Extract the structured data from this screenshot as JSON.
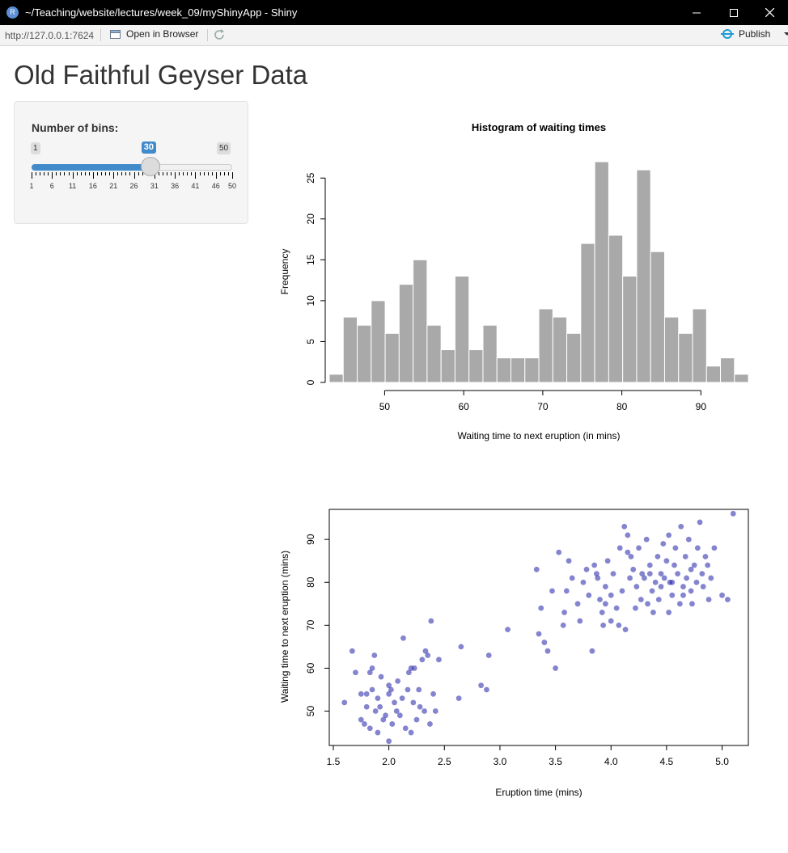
{
  "window": {
    "title": "~/Teaching/website/lectures/week_09/myShinyApp - Shiny",
    "icon": "r-app-icon"
  },
  "toolbar": {
    "url": "http://127.0.0.1:7624",
    "open_in_browser": "Open in Browser",
    "publish": "Publish"
  },
  "app": {
    "title": "Old Faithful Geyser Data",
    "slider": {
      "label": "Number of bins:",
      "min": 1,
      "max": 50,
      "value": 30,
      "min_text": "1",
      "max_text": "50",
      "value_text": "30",
      "tick_labels": [
        "1",
        "6",
        "11",
        "16",
        "21",
        "26",
        "31",
        "36",
        "41",
        "46",
        "50"
      ]
    }
  },
  "chart_data": [
    {
      "type": "bar",
      "title": "Histogram of waiting times",
      "xlabel": "Waiting time to next eruption (in mins)",
      "ylabel": "Frequency",
      "bar_color": "#a9a9a9",
      "bin_start": 43,
      "bin_width": 1.767,
      "values": [
        1,
        8,
        7,
        10,
        6,
        12,
        15,
        7,
        4,
        13,
        4,
        7,
        3,
        3,
        3,
        9,
        8,
        6,
        17,
        27,
        18,
        13,
        26,
        16,
        8,
        6,
        9,
        2,
        3,
        1
      ],
      "xlim": [
        43,
        96
      ],
      "x_ticks": [
        50,
        60,
        70,
        80,
        90
      ],
      "ylim": [
        0,
        27
      ],
      "y_ticks": [
        0,
        5,
        10,
        15,
        20,
        25
      ]
    },
    {
      "type": "scatter",
      "title": "",
      "xlabel": "Eruption time (mins)",
      "ylabel": "Waiting time to next eruption (mins)",
      "point_color": "#2020a8",
      "xlim": [
        1.5,
        5.2
      ],
      "x_ticks": [
        1.5,
        2.0,
        2.5,
        3.0,
        3.5,
        4.0,
        4.5,
        5.0
      ],
      "x_tick_labels": [
        "1.5",
        "2.0",
        "2.5",
        "3.0",
        "3.5",
        "4.0",
        "4.5",
        "5.0"
      ],
      "ylim": [
        42,
        97
      ],
      "y_ticks": [
        50,
        60,
        70,
        80,
        90
      ],
      "points": [
        [
          1.6,
          52
        ],
        [
          1.67,
          64
        ],
        [
          1.7,
          59
        ],
        [
          1.75,
          54
        ],
        [
          1.75,
          48
        ],
        [
          1.78,
          47
        ],
        [
          1.8,
          51
        ],
        [
          1.8,
          54
        ],
        [
          1.83,
          59
        ],
        [
          1.83,
          46
        ],
        [
          1.85,
          60
        ],
        [
          1.85,
          55
        ],
        [
          1.87,
          63
        ],
        [
          1.88,
          50
        ],
        [
          1.9,
          53
        ],
        [
          1.9,
          45
        ],
        [
          1.92,
          51
        ],
        [
          1.93,
          58
        ],
        [
          1.95,
          48
        ],
        [
          1.97,
          49
        ],
        [
          2.0,
          56
        ],
        [
          2.0,
          54
        ],
        [
          2.0,
          43
        ],
        [
          2.02,
          55
        ],
        [
          2.03,
          47
        ],
        [
          2.05,
          52
        ],
        [
          2.07,
          50
        ],
        [
          2.08,
          57
        ],
        [
          2.1,
          49
        ],
        [
          2.12,
          53
        ],
        [
          2.13,
          67
        ],
        [
          2.15,
          46
        ],
        [
          2.17,
          55
        ],
        [
          2.18,
          59
        ],
        [
          2.2,
          60
        ],
        [
          2.2,
          45
        ],
        [
          2.22,
          52
        ],
        [
          2.23,
          60
        ],
        [
          2.25,
          48
        ],
        [
          2.27,
          55
        ],
        [
          2.28,
          51
        ],
        [
          2.3,
          62
        ],
        [
          2.32,
          50
        ],
        [
          2.33,
          64
        ],
        [
          2.35,
          63
        ],
        [
          2.37,
          47
        ],
        [
          2.38,
          71
        ],
        [
          2.4,
          54
        ],
        [
          2.42,
          50
        ],
        [
          2.45,
          62
        ],
        [
          2.63,
          53
        ],
        [
          2.65,
          65
        ],
        [
          2.83,
          56
        ],
        [
          2.88,
          55
        ],
        [
          2.9,
          63
        ],
        [
          3.07,
          69
        ],
        [
          3.33,
          83
        ],
        [
          3.35,
          68
        ],
        [
          3.37,
          74
        ],
        [
          3.4,
          66
        ],
        [
          3.43,
          64
        ],
        [
          3.47,
          78
        ],
        [
          3.5,
          60
        ],
        [
          3.53,
          87
        ],
        [
          3.57,
          70
        ],
        [
          3.58,
          73
        ],
        [
          3.6,
          78
        ],
        [
          3.62,
          85
        ],
        [
          3.65,
          81
        ],
        [
          3.7,
          75
        ],
        [
          3.72,
          71
        ],
        [
          3.75,
          80
        ],
        [
          3.78,
          83
        ],
        [
          3.8,
          77
        ],
        [
          3.83,
          64
        ],
        [
          3.85,
          84
        ],
        [
          3.87,
          82
        ],
        [
          3.9,
          76
        ],
        [
          3.92,
          73
        ],
        [
          3.93,
          70
        ],
        [
          3.95,
          79
        ],
        [
          3.97,
          85
        ],
        [
          4.0,
          77
        ],
        [
          4.0,
          71
        ],
        [
          4.02,
          82
        ],
        [
          4.05,
          74
        ],
        [
          4.07,
          70
        ],
        [
          4.08,
          88
        ],
        [
          4.1,
          78
        ],
        [
          4.12,
          93
        ],
        [
          4.13,
          69
        ],
        [
          4.15,
          91
        ],
        [
          4.17,
          81
        ],
        [
          4.18,
          86
        ],
        [
          4.2,
          83
        ],
        [
          4.22,
          74
        ],
        [
          4.23,
          79
        ],
        [
          4.25,
          88
        ],
        [
          4.27,
          76
        ],
        [
          4.28,
          82
        ],
        [
          4.3,
          81
        ],
        [
          4.32,
          90
        ],
        [
          4.33,
          75
        ],
        [
          4.35,
          84
        ],
        [
          4.37,
          78
        ],
        [
          4.38,
          73
        ],
        [
          4.4,
          80
        ],
        [
          4.42,
          86
        ],
        [
          4.43,
          76
        ],
        [
          4.45,
          79
        ],
        [
          4.47,
          89
        ],
        [
          4.48,
          81
        ],
        [
          4.5,
          85
        ],
        [
          4.52,
          73
        ],
        [
          4.53,
          80
        ],
        [
          4.55,
          77
        ],
        [
          4.57,
          84
        ],
        [
          4.58,
          88
        ],
        [
          4.6,
          82
        ],
        [
          4.62,
          75
        ],
        [
          4.63,
          93
        ],
        [
          4.65,
          79
        ],
        [
          4.67,
          86
        ],
        [
          4.68,
          81
        ],
        [
          4.7,
          90
        ],
        [
          4.72,
          78
        ],
        [
          4.73,
          75
        ],
        [
          4.75,
          84
        ],
        [
          4.77,
          80
        ],
        [
          4.78,
          88
        ],
        [
          4.8,
          94
        ],
        [
          4.82,
          82
        ],
        [
          4.83,
          79
        ],
        [
          4.85,
          86
        ],
        [
          4.87,
          84
        ],
        [
          4.88,
          76
        ],
        [
          4.9,
          81
        ],
        [
          4.93,
          88
        ],
        [
          5.0,
          77
        ],
        [
          5.05,
          76
        ],
        [
          5.1,
          96
        ],
        [
          4.45,
          82
        ],
        [
          4.55,
          80
        ],
        [
          4.65,
          77
        ],
        [
          4.35,
          82
        ],
        [
          4.15,
          87
        ],
        [
          3.95,
          75
        ],
        [
          3.88,
          81
        ],
        [
          4.72,
          83
        ],
        [
          4.52,
          91
        ]
      ]
    }
  ]
}
